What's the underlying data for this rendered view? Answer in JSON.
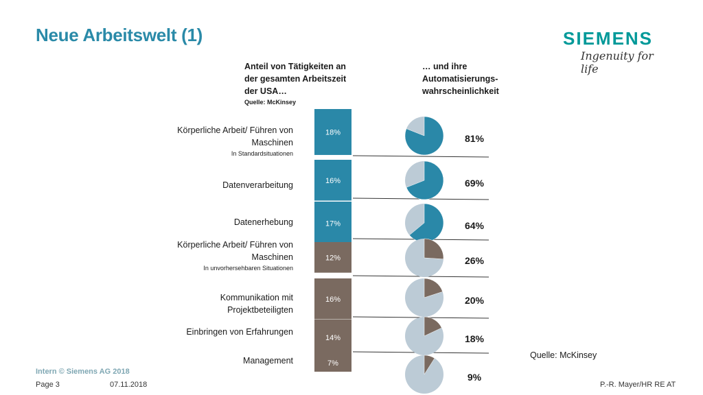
{
  "title": "Neue Arbeitswelt (1)",
  "logo": {
    "word": "SIEMENS",
    "tagline": "Ingenuity for life"
  },
  "headers": {
    "left": "Anteil von Tätigkeiten an der gesamten Arbeitszeit der USA…",
    "left_source": "Quelle: McKinsey",
    "right": "… und ihre Automatisierungs-wahrscheinlichkeit"
  },
  "categories": [
    {
      "label": "Körperliche Arbeit/ Führen von Maschinen",
      "sub": "In Standardsituationen"
    },
    {
      "label": "Datenverarbeitung",
      "sub": ""
    },
    {
      "label": "Datenerhebung",
      "sub": ""
    },
    {
      "label": "Körperliche Arbeit/ Führen von Maschinen",
      "sub": "In unvorhersehbaren Situationen"
    },
    {
      "label": "Kommunikation mit Projektbeteiligten",
      "sub": ""
    },
    {
      "label": "Einbringen von Erfahrungen",
      "sub": ""
    },
    {
      "label": "Management",
      "sub": ""
    }
  ],
  "source": "Quelle: McKinsey",
  "footer": {
    "intern": "Intern © Siemens AG 2018",
    "page": "Page 3",
    "date": "07.11.2018",
    "author": "P.-R. Mayer/HR RE AT"
  },
  "chart_data": {
    "type": "bar",
    "categories": [
      "Körperliche Arbeit/ Führen von Maschinen (In Standardsituationen)",
      "Datenverarbeitung",
      "Datenerhebung",
      "Körperliche Arbeit/ Führen von Maschinen (In unvorhersehbaren Situationen)",
      "Kommunikation mit Projektbeteiligten",
      "Einbringen von Erfahrungen",
      "Management"
    ],
    "series": [
      {
        "name": "Anteil von Tätigkeiten an der gesamten Arbeitszeit der USA",
        "values": [
          18,
          16,
          17,
          12,
          16,
          14,
          7
        ],
        "labels": [
          "18%",
          "16%",
          "17%",
          "12%",
          "16%",
          "14%",
          "7%"
        ]
      },
      {
        "name": "Automatisierungswahrscheinlichkeit",
        "values": [
          81,
          69,
          64,
          26,
          20,
          18,
          9
        ],
        "labels": [
          "81%",
          "69%",
          "64%",
          "26%",
          "20%",
          "18%",
          "9%"
        ]
      }
    ],
    "colors": {
      "high": "#2a88a8",
      "low": "#7a6a60",
      "pie_rest": "#bccbd6",
      "line": "#333333"
    },
    "highlight_count": 3
  }
}
